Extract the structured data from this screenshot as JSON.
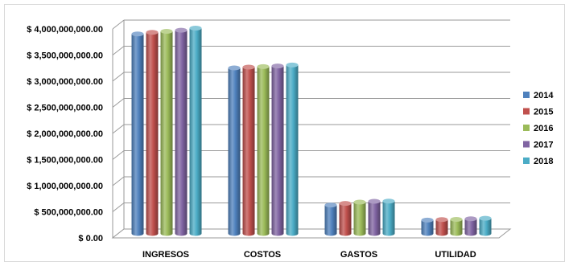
{
  "chart_data": {
    "type": "bar",
    "categories": [
      "INGRESOS",
      "COSTOS",
      "GASTOS",
      "UTILIDAD"
    ],
    "series": [
      {
        "name": "2014",
        "values": [
          3820000000,
          3170000000,
          545000000,
          255000000
        ],
        "color": "#4F81BD"
      },
      {
        "name": "2015",
        "values": [
          3850000000,
          3185000000,
          575000000,
          265000000
        ],
        "color": "#C0504D"
      },
      {
        "name": "2016",
        "values": [
          3870000000,
          3195000000,
          600000000,
          270000000
        ],
        "color": "#9BBB59"
      },
      {
        "name": "2017",
        "values": [
          3890000000,
          3205000000,
          615000000,
          280000000
        ],
        "color": "#8064A2"
      },
      {
        "name": "2018",
        "values": [
          3930000000,
          3225000000,
          620000000,
          290000000
        ],
        "color": "#4BACC6"
      }
    ],
    "yticks": [
      "$ 0.00",
      "$ 500,000,000.00",
      "$ 1,000,000,000.00",
      "$ 1,500,000,000.00",
      "$ 2,000,000,000.00",
      "$ 2,500,000,000.00",
      "$ 3,000,000,000.00",
      "$ 3,500,000,000.00",
      "$ 4,000,000,000.00"
    ],
    "ylim": [
      0,
      4000000000
    ],
    "grid": true,
    "legend_position": "right",
    "title": "",
    "xlabel": "",
    "ylabel": ""
  }
}
